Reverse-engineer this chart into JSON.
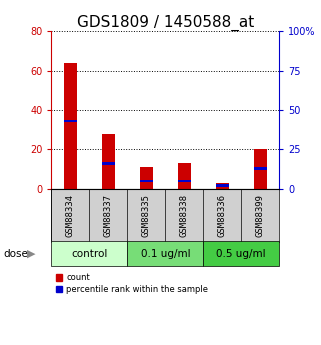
{
  "title": "GDS1809 / 1450588_at",
  "samples": [
    "GSM88334",
    "GSM88337",
    "GSM88335",
    "GSM88338",
    "GSM88336",
    "GSM88399"
  ],
  "counts": [
    64,
    28,
    11,
    13,
    3,
    20
  ],
  "percentiles": [
    43,
    16,
    5,
    5,
    2,
    13
  ],
  "left_ylim": [
    0,
    80
  ],
  "right_ylim": [
    0,
    100
  ],
  "left_yticks": [
    0,
    20,
    40,
    60,
    80
  ],
  "right_yticks": [
    0,
    25,
    50,
    75,
    100
  ],
  "left_yticklabels": [
    "0",
    "20",
    "40",
    "60",
    "80"
  ],
  "right_yticklabels": [
    "0",
    "25",
    "50",
    "75",
    "100%"
  ],
  "left_ytick_color": "#cc0000",
  "right_ytick_color": "#0000cc",
  "bar_color_red": "#cc0000",
  "bar_color_blue": "#0000cc",
  "gridline_style": "dotted",
  "gridline_color": "#000000",
  "groups": [
    {
      "label": "control",
      "samples": [
        0,
        1
      ],
      "color": "#ccffcc"
    },
    {
      "label": "0.1 ug/ml",
      "samples": [
        2,
        3
      ],
      "color": "#77dd77"
    },
    {
      "label": "0.5 ug/ml",
      "samples": [
        4,
        5
      ],
      "color": "#44cc44"
    }
  ],
  "dose_label": "dose",
  "legend_count": "count",
  "legend_percentile": "percentile rank within the sample",
  "bg_color": "#ffffff",
  "sample_box_color": "#d0d0d0",
  "bar_width": 0.35,
  "title_fontsize": 11,
  "tick_fontsize": 7,
  "label_fontsize": 8,
  "group_fontsize": 7.5,
  "sample_fontsize": 6.5
}
